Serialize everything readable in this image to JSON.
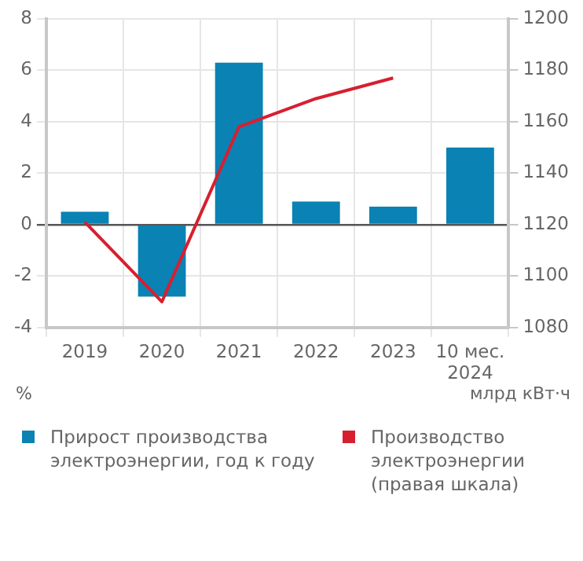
{
  "chart_data": {
    "type": "bar",
    "categories": [
      "2019",
      "2020",
      "2021",
      "2022",
      "2023",
      "10 мес.\n2024"
    ],
    "series": [
      {
        "name": "Прирост производства электроэнергии, год к году",
        "color": "#0a82b4",
        "values": [
          0.5,
          -2.8,
          6.3,
          0.9,
          0.7,
          3.0
        ]
      },
      {
        "name": "Производство электроэнергии (правая шкала)",
        "type": "line",
        "axis": "y2",
        "color": "#d71f30",
        "values": [
          1121,
          1090,
          1158,
          1169,
          1177,
          null
        ]
      }
    ],
    "ylim": [
      -4,
      8
    ],
    "yticks": [
      -4,
      -2,
      0,
      2,
      4,
      6,
      8
    ],
    "y2lim": [
      1080,
      1200
    ],
    "y2ticks": [
      1080,
      1100,
      1120,
      1140,
      1160,
      1180,
      1200
    ],
    "ylabel": "%",
    "y2label": "млрд кВт·ч",
    "grid": true,
    "legend": "bottom"
  }
}
